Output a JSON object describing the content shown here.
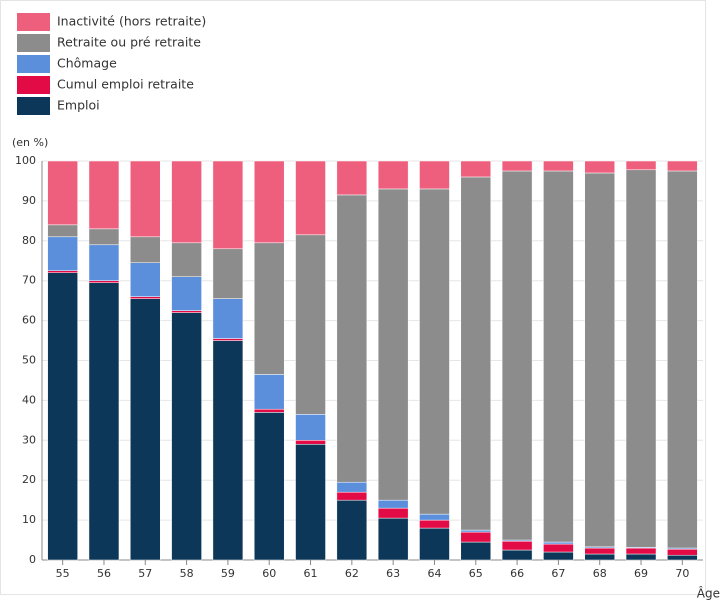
{
  "chart_data": {
    "type": "stacked_bar",
    "y_label": "(en %)",
    "x_label": "Âge",
    "categories": [
      "55",
      "56",
      "57",
      "58",
      "59",
      "60",
      "61",
      "62",
      "63",
      "64",
      "65",
      "66",
      "67",
      "68",
      "69",
      "70"
    ],
    "series": [
      {
        "name": "Emploi",
        "color": "#0c3758",
        "values": [
          72,
          69.5,
          65.5,
          62,
          55,
          37,
          29,
          15,
          10.5,
          8,
          4.5,
          2.5,
          2,
          1.5,
          1.5,
          1.2
        ]
      },
      {
        "name": "Cumul emploi retraite",
        "color": "#e30b45",
        "values": [
          0.5,
          0.5,
          0.5,
          0.5,
          0.5,
          0.8,
          1,
          2,
          2.5,
          2,
          2.5,
          2.2,
          2,
          1.5,
          1.5,
          1.5
        ]
      },
      {
        "name": "Chômage",
        "color": "#5b8fdc",
        "values": [
          8.5,
          9,
          8.5,
          8.5,
          10,
          8.7,
          6.5,
          2.5,
          2,
          1.5,
          0.5,
          0.3,
          0.5,
          0.3,
          0.2,
          0.3
        ]
      },
      {
        "name": "Retraite ou pré retraite",
        "color": "#8c8c8c",
        "values": [
          3,
          4,
          6.5,
          8.5,
          12.5,
          33,
          45,
          72,
          78,
          81.5,
          88.5,
          92.5,
          93,
          93.7,
          94.6,
          94.5
        ]
      },
      {
        "name": "Inactivité (hors retraite)",
        "color": "#ee5f7e",
        "values": [
          16,
          17,
          19,
          20.5,
          22,
          20.5,
          18.5,
          8.5,
          7,
          7,
          4,
          2.5,
          2.5,
          3,
          2.2,
          2.5
        ]
      }
    ],
    "ylim": [
      0,
      100
    ],
    "yticks": [
      0,
      10,
      20,
      30,
      40,
      50,
      60,
      70,
      80,
      90,
      100
    ],
    "grid": true
  }
}
